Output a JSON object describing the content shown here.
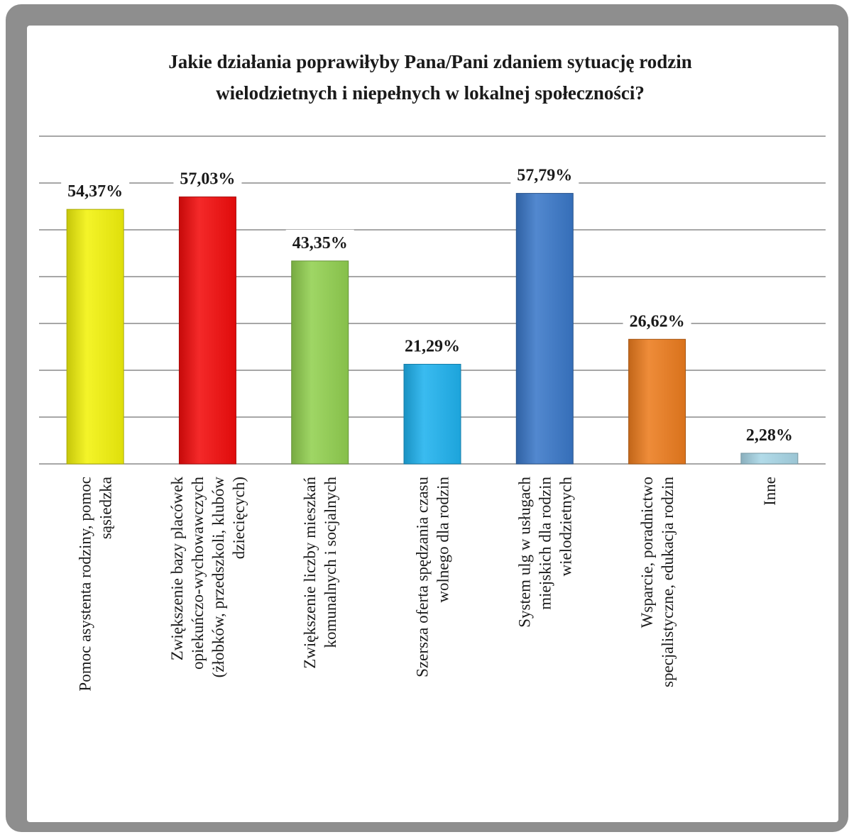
{
  "chart_data": {
    "type": "bar",
    "title_lines": [
      "Jakie działania poprawiłyby Pana/Pani zdaniem sytuację rodzin",
      "wielodzietnych i niepełnych w lokalnej społeczności?"
    ],
    "categories": [
      [
        "Pomoc asystenta rodziny, pomoc",
        "sąsiedzka"
      ],
      [
        "Zwiększenie bazy placówek",
        "opiekuńczo-wychowawczych",
        "(żłobków, przedszkoli, klubów",
        "dziecięcych)"
      ],
      [
        "Zwiększenie liczby mieszkań",
        "komunalnych i socjalnych"
      ],
      [
        "Szersza oferta spędzania czasu",
        "wolnego dla rodzin"
      ],
      [
        "System ulg w usługach",
        "miejskich dla rodzin",
        "wielodzietnych"
      ],
      [
        "Wsparcie, poradnictwo",
        "specjalistyczne, edukacja rodzin"
      ],
      [
        "Inne"
      ]
    ],
    "values": [
      54.37,
      57.03,
      43.35,
      21.29,
      57.79,
      26.62,
      2.28
    ],
    "value_labels": [
      "54,37%",
      "57,03%",
      "43,35%",
      "21,29%",
      "57,79%",
      "26,62%",
      "2,28%"
    ],
    "colors": [
      "#f2f20c",
      "#f20c0c",
      "#92d050",
      "#1fb2ee",
      "#3a78c8",
      "#ec7c1e",
      "#a8d6e6"
    ],
    "ylim": [
      0,
      70
    ],
    "grid_step": 10,
    "grid": true,
    "legend": "none"
  }
}
